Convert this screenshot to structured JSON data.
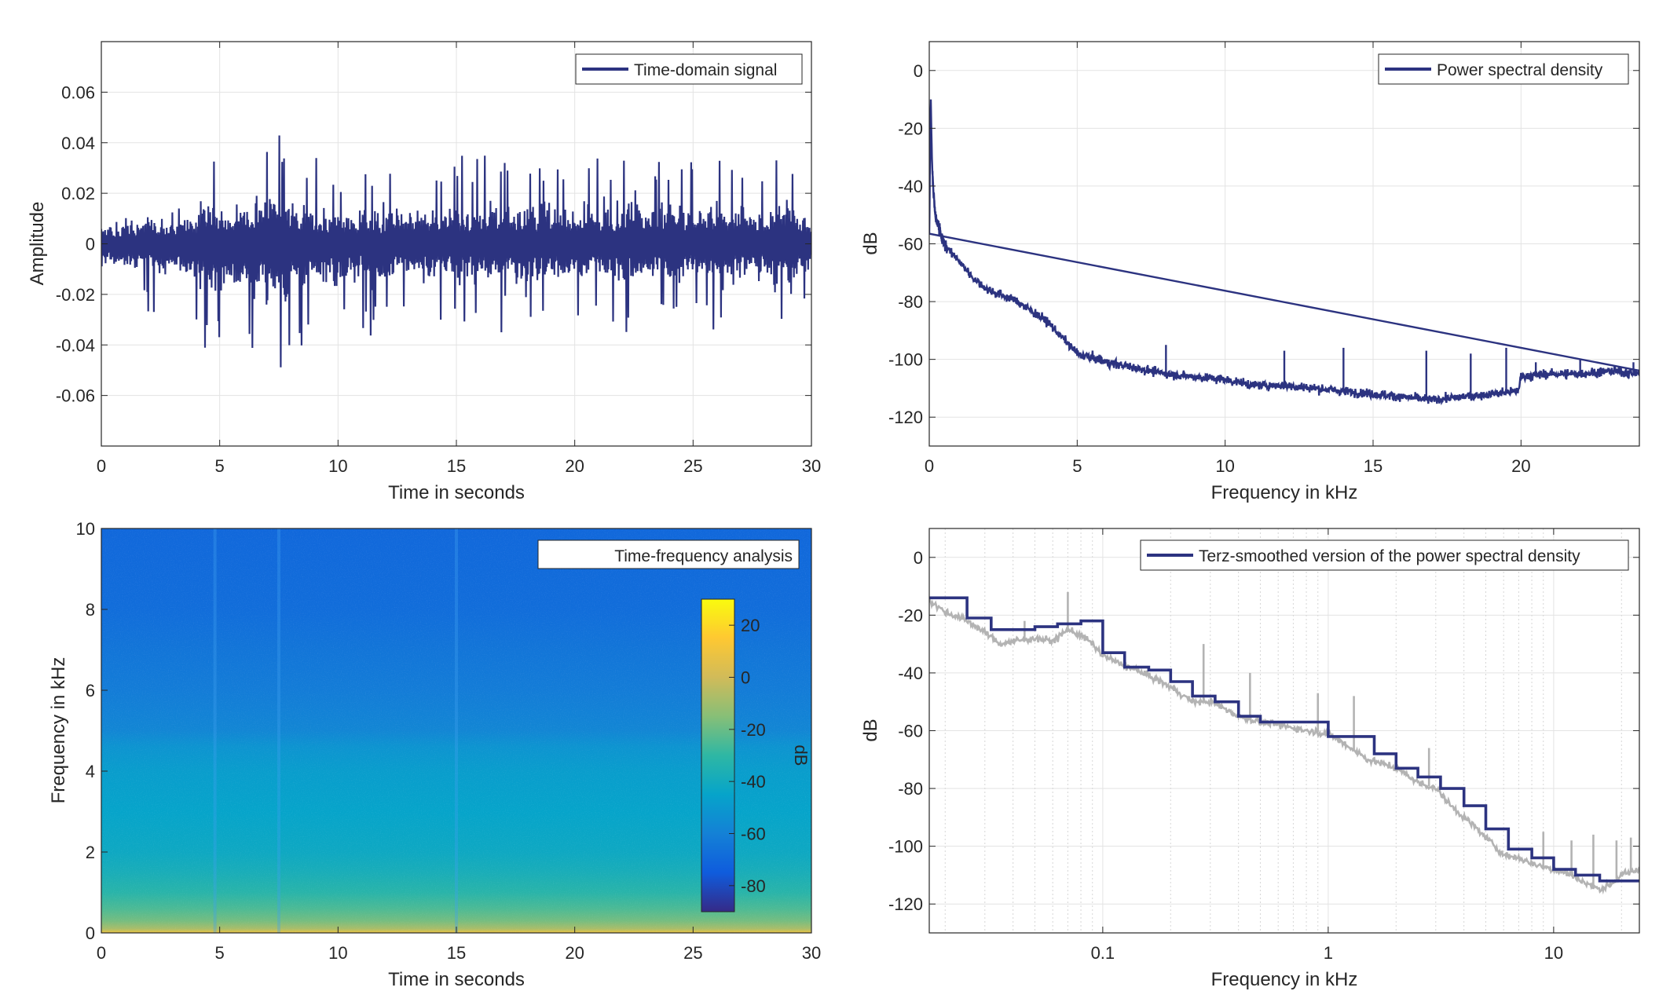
{
  "colors": {
    "series": "#2c3380",
    "raw_psd": "#b3b3b3",
    "grid": "#e3e3e3",
    "axis": "#262626",
    "background": "#ffffff"
  },
  "chart_data": [
    {
      "id": "time",
      "type": "line",
      "xlabel": "Time in seconds",
      "ylabel": "Amplitude",
      "xlim": [
        0,
        30
      ],
      "ylim": [
        -0.08,
        0.08
      ],
      "xticks": [
        0,
        5,
        10,
        15,
        20,
        25,
        30
      ],
      "xtick_labels": [
        "0",
        "5",
        "10",
        "15",
        "20",
        "25",
        "30"
      ],
      "yticks": [
        -0.06,
        -0.04,
        -0.02,
        0,
        0.02,
        0.04,
        0.06
      ],
      "ytick_labels": [
        "-0.06",
        "-0.04",
        "-0.02",
        "0",
        "0.02",
        "0.04",
        "0.06"
      ],
      "grid": true,
      "legend": {
        "position": "top-right",
        "entries": [
          "Time-domain signal"
        ]
      },
      "series": [
        {
          "name": "Time-domain signal",
          "envelope_time_s": [
            0,
            2,
            4,
            4.3,
            5,
            6,
            7.2,
            7.5,
            8,
            10,
            15,
            18,
            20,
            22,
            25,
            26,
            28,
            28.5,
            30
          ],
          "envelope_upper": [
            0.02,
            0.025,
            0.03,
            0.048,
            0.04,
            0.044,
            0.05,
            0.053,
            0.045,
            0.032,
            0.038,
            0.04,
            0.035,
            0.04,
            0.04,
            0.042,
            0.035,
            0.047,
            0.028
          ],
          "envelope_lower": [
            -0.025,
            -0.03,
            -0.04,
            -0.051,
            -0.045,
            -0.05,
            -0.062,
            -0.066,
            -0.05,
            -0.038,
            -0.04,
            -0.042,
            -0.035,
            -0.04,
            -0.035,
            -0.04,
            -0.035,
            -0.051,
            -0.03
          ]
        }
      ]
    },
    {
      "id": "psd",
      "type": "line",
      "xlabel": "Frequency in kHz",
      "ylabel": "dB",
      "xlim": [
        0,
        24
      ],
      "ylim": [
        -130,
        10
      ],
      "xticks": [
        0,
        5,
        10,
        15,
        20
      ],
      "xtick_labels": [
        "0",
        "5",
        "10",
        "15",
        "20"
      ],
      "yticks": [
        0,
        -20,
        -40,
        -60,
        -80,
        -100,
        -120
      ],
      "ytick_labels": [
        "0",
        "-20",
        "-40",
        "-60",
        "-80",
        "-100",
        "-120"
      ],
      "grid": true,
      "legend": {
        "position": "top-right",
        "entries": [
          "Power spectral density"
        ]
      },
      "series": [
        {
          "name": "Power spectral density",
          "x": [
            0,
            0.05,
            0.1,
            0.2,
            0.5,
            1,
            1.5,
            2,
            3,
            4,
            5,
            6,
            7,
            8,
            9,
            10,
            11,
            12,
            13,
            14,
            15,
            16,
            17,
            18,
            19,
            19.9,
            20,
            21,
            22,
            23,
            24
          ],
          "y": [
            -55,
            -10,
            -35,
            -50,
            -60,
            -66,
            -72,
            -76,
            -80,
            -87,
            -98,
            -101,
            -103,
            -105,
            -106,
            -107,
            -109,
            -109,
            -110,
            -111,
            -112,
            -113,
            -114,
            -113,
            -112,
            -111,
            -106,
            -105,
            -105,
            -104,
            -105
          ],
          "spikes": [
            [
              8,
              -95
            ],
            [
              12,
              -97
            ],
            [
              14,
              -96
            ],
            [
              16.8,
              -97
            ],
            [
              18.3,
              -98
            ],
            [
              19.5,
              -96
            ],
            [
              20.5,
              -101
            ],
            [
              22,
              -100
            ],
            [
              23.8,
              -101
            ]
          ]
        }
      ]
    },
    {
      "id": "spectrogram",
      "type": "heatmap",
      "xlabel": "Time in seconds",
      "ylabel": "Frequency in kHz",
      "xlim": [
        0,
        30
      ],
      "ylim": [
        0,
        10
      ],
      "xticks": [
        0,
        5,
        10,
        15,
        20,
        25,
        30
      ],
      "xtick_labels": [
        "0",
        "5",
        "10",
        "15",
        "20",
        "25",
        "30"
      ],
      "yticks": [
        0,
        2,
        4,
        6,
        8,
        10
      ],
      "ytick_labels": [
        "0",
        "2",
        "4",
        "6",
        "8",
        "10"
      ],
      "legend": {
        "position": "top-right",
        "entries": [
          "Time-frequency analysis"
        ]
      },
      "colorbar": {
        "label": "dB",
        "range": [
          -90,
          30
        ],
        "ticks": [
          20,
          0,
          -20,
          -40,
          -60,
          -80
        ],
        "tick_labels": [
          "20",
          "0",
          "-20",
          "-40",
          "-60",
          "-80"
        ],
        "colormap": [
          "#352a87",
          "#0f5cdd",
          "#1481d6",
          "#06a4ca",
          "#2eb7a4",
          "#87bf77",
          "#d1bb59",
          "#fec832",
          "#f9fb0e"
        ]
      },
      "frequency_profile_khz": [
        0,
        0.1,
        0.3,
        0.6,
        1,
        1.5,
        2,
        3,
        4,
        4.6,
        5,
        6,
        7,
        8,
        10
      ],
      "level_db_profile": [
        10,
        -8,
        -18,
        -25,
        -32,
        -38,
        -42,
        -45,
        -48,
        -52,
        -58,
        -62,
        -65,
        -68,
        -70
      ],
      "bright_columns_s": [
        4.8,
        7.5,
        15
      ]
    },
    {
      "id": "terz",
      "type": "line",
      "xlabel": "Frequency in kHz",
      "ylabel": "dB",
      "xscale": "log",
      "xlim": [
        0.017,
        24
      ],
      "ylim": [
        -130,
        10
      ],
      "xticks": [
        0.1,
        1,
        10
      ],
      "xtick_labels": [
        "0.1",
        "1",
        "10"
      ],
      "yticks": [
        0,
        -20,
        -40,
        -60,
        -80,
        -100,
        -120
      ],
      "ytick_labels": [
        "0",
        "-20",
        "-40",
        "-60",
        "-80",
        "-100",
        "-120"
      ],
      "grid": true,
      "legend": {
        "position": "top-right",
        "entries": [
          "Terz-smoothed version of the power spectral density"
        ]
      },
      "series": [
        {
          "name": "Terz-smoothed version of the power spectral density",
          "x": [
            0.017,
            0.025,
            0.025,
            0.032,
            0.032,
            0.04,
            0.04,
            0.05,
            0.05,
            0.063,
            0.063,
            0.08,
            0.08,
            0.1,
            0.1,
            0.125,
            0.125,
            0.16,
            0.16,
            0.2,
            0.2,
            0.25,
            0.25,
            0.315,
            0.315,
            0.4,
            0.4,
            0.5,
            0.5,
            0.63,
            0.63,
            0.8,
            0.8,
            1.0,
            1.0,
            1.25,
            1.25,
            1.6,
            1.6,
            2.0,
            2.0,
            2.5,
            2.5,
            3.15,
            3.15,
            4.0,
            4.0,
            5.0,
            5.0,
            6.3,
            6.3,
            8.0,
            8.0,
            10.0,
            10.0,
            12.5,
            12.5,
            16.0,
            16.0,
            24
          ],
          "y": [
            -14,
            -14,
            -21,
            -21,
            -25,
            -25,
            -25,
            -25,
            -24,
            -24,
            -23,
            -23,
            -22,
            -22,
            -33,
            -33,
            -38,
            -38,
            -39,
            -39,
            -43,
            -43,
            -48,
            -48,
            -50,
            -50,
            -55,
            -55,
            -57,
            -57,
            -57,
            -57,
            -57,
            -57,
            -62,
            -62,
            -62,
            -62,
            -68,
            -68,
            -73,
            -73,
            -76,
            -76,
            -80,
            -80,
            -86,
            -86,
            -94,
            -94,
            -101,
            -101,
            -104,
            -104,
            -108,
            -108,
            -110,
            -110,
            -112,
            -112
          ]
        },
        {
          "name": "",
          "x": [
            0.017,
            0.02,
            0.025,
            0.03,
            0.035,
            0.04,
            0.05,
            0.06,
            0.07,
            0.08,
            0.09,
            0.1,
            0.12,
            0.15,
            0.2,
            0.25,
            0.3,
            0.4,
            0.5,
            0.6,
            0.8,
            1.0,
            1.2,
            1.5,
            2.0,
            2.5,
            3.0,
            3.5,
            4.0,
            5.0,
            6.0,
            7.0,
            8.0,
            10.0,
            12.0,
            14.0,
            16.0,
            18.0,
            20.0,
            24
          ],
          "y": [
            -15,
            -19,
            -22,
            -26,
            -30,
            -29,
            -28,
            -29,
            -25,
            -27,
            -30,
            -34,
            -37,
            -40,
            -45,
            -50,
            -50,
            -55,
            -57,
            -58,
            -60,
            -61,
            -65,
            -70,
            -73,
            -78,
            -80,
            -86,
            -90,
            -97,
            -103,
            -104,
            -106,
            -108,
            -110,
            -113,
            -115,
            -113,
            -110,
            -108
          ],
          "spikes": [
            [
              0.045,
              -22
            ],
            [
              0.07,
              -12
            ],
            [
              0.28,
              -30
            ],
            [
              0.45,
              -40
            ],
            [
              0.9,
              -47
            ],
            [
              1.3,
              -48
            ],
            [
              2.8,
              -66
            ],
            [
              9.0,
              -95
            ],
            [
              12.0,
              -98
            ],
            [
              15.0,
              -96
            ],
            [
              19.0,
              -98
            ],
            [
              22.0,
              -97
            ]
          ]
        }
      ]
    }
  ]
}
